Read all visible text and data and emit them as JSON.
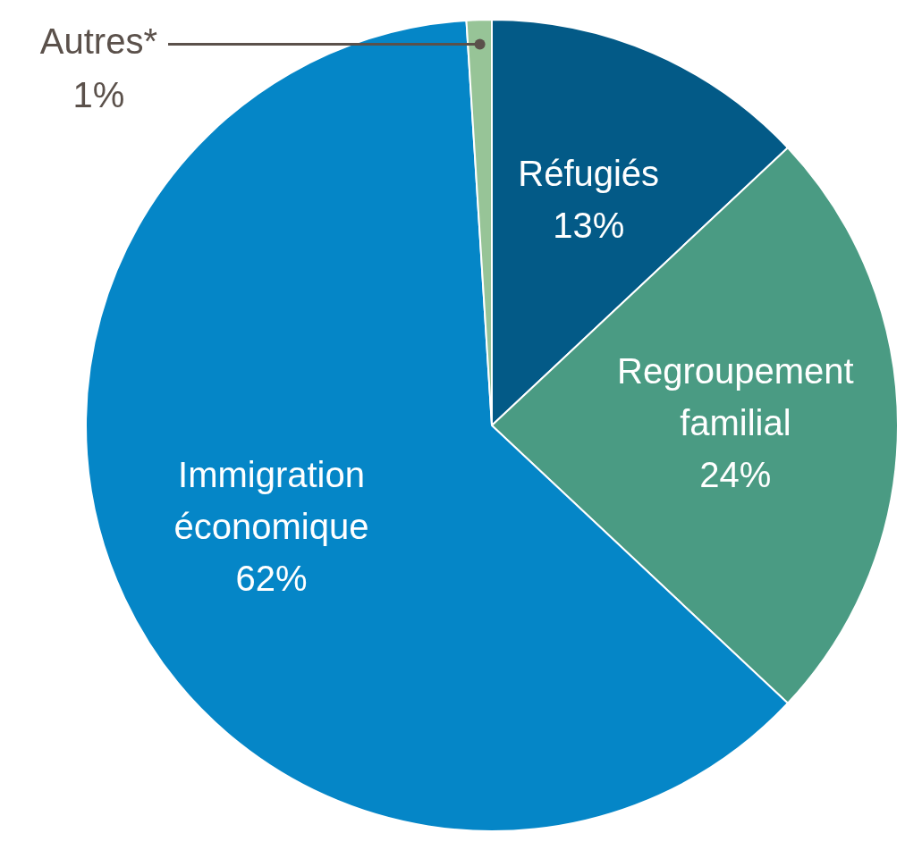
{
  "chart_data": {
    "type": "pie",
    "categories": [
      "Réfugiés",
      "Regroupement familial",
      "Immigration économique",
      "Autres*"
    ],
    "values": [
      13,
      24,
      62,
      1
    ],
    "colors": [
      "#035a87",
      "#4a9b83",
      "#0586c7",
      "#97c497"
    ],
    "value_labels": [
      "13%",
      "24%",
      "62%",
      "1%"
    ],
    "legend": false
  }
}
